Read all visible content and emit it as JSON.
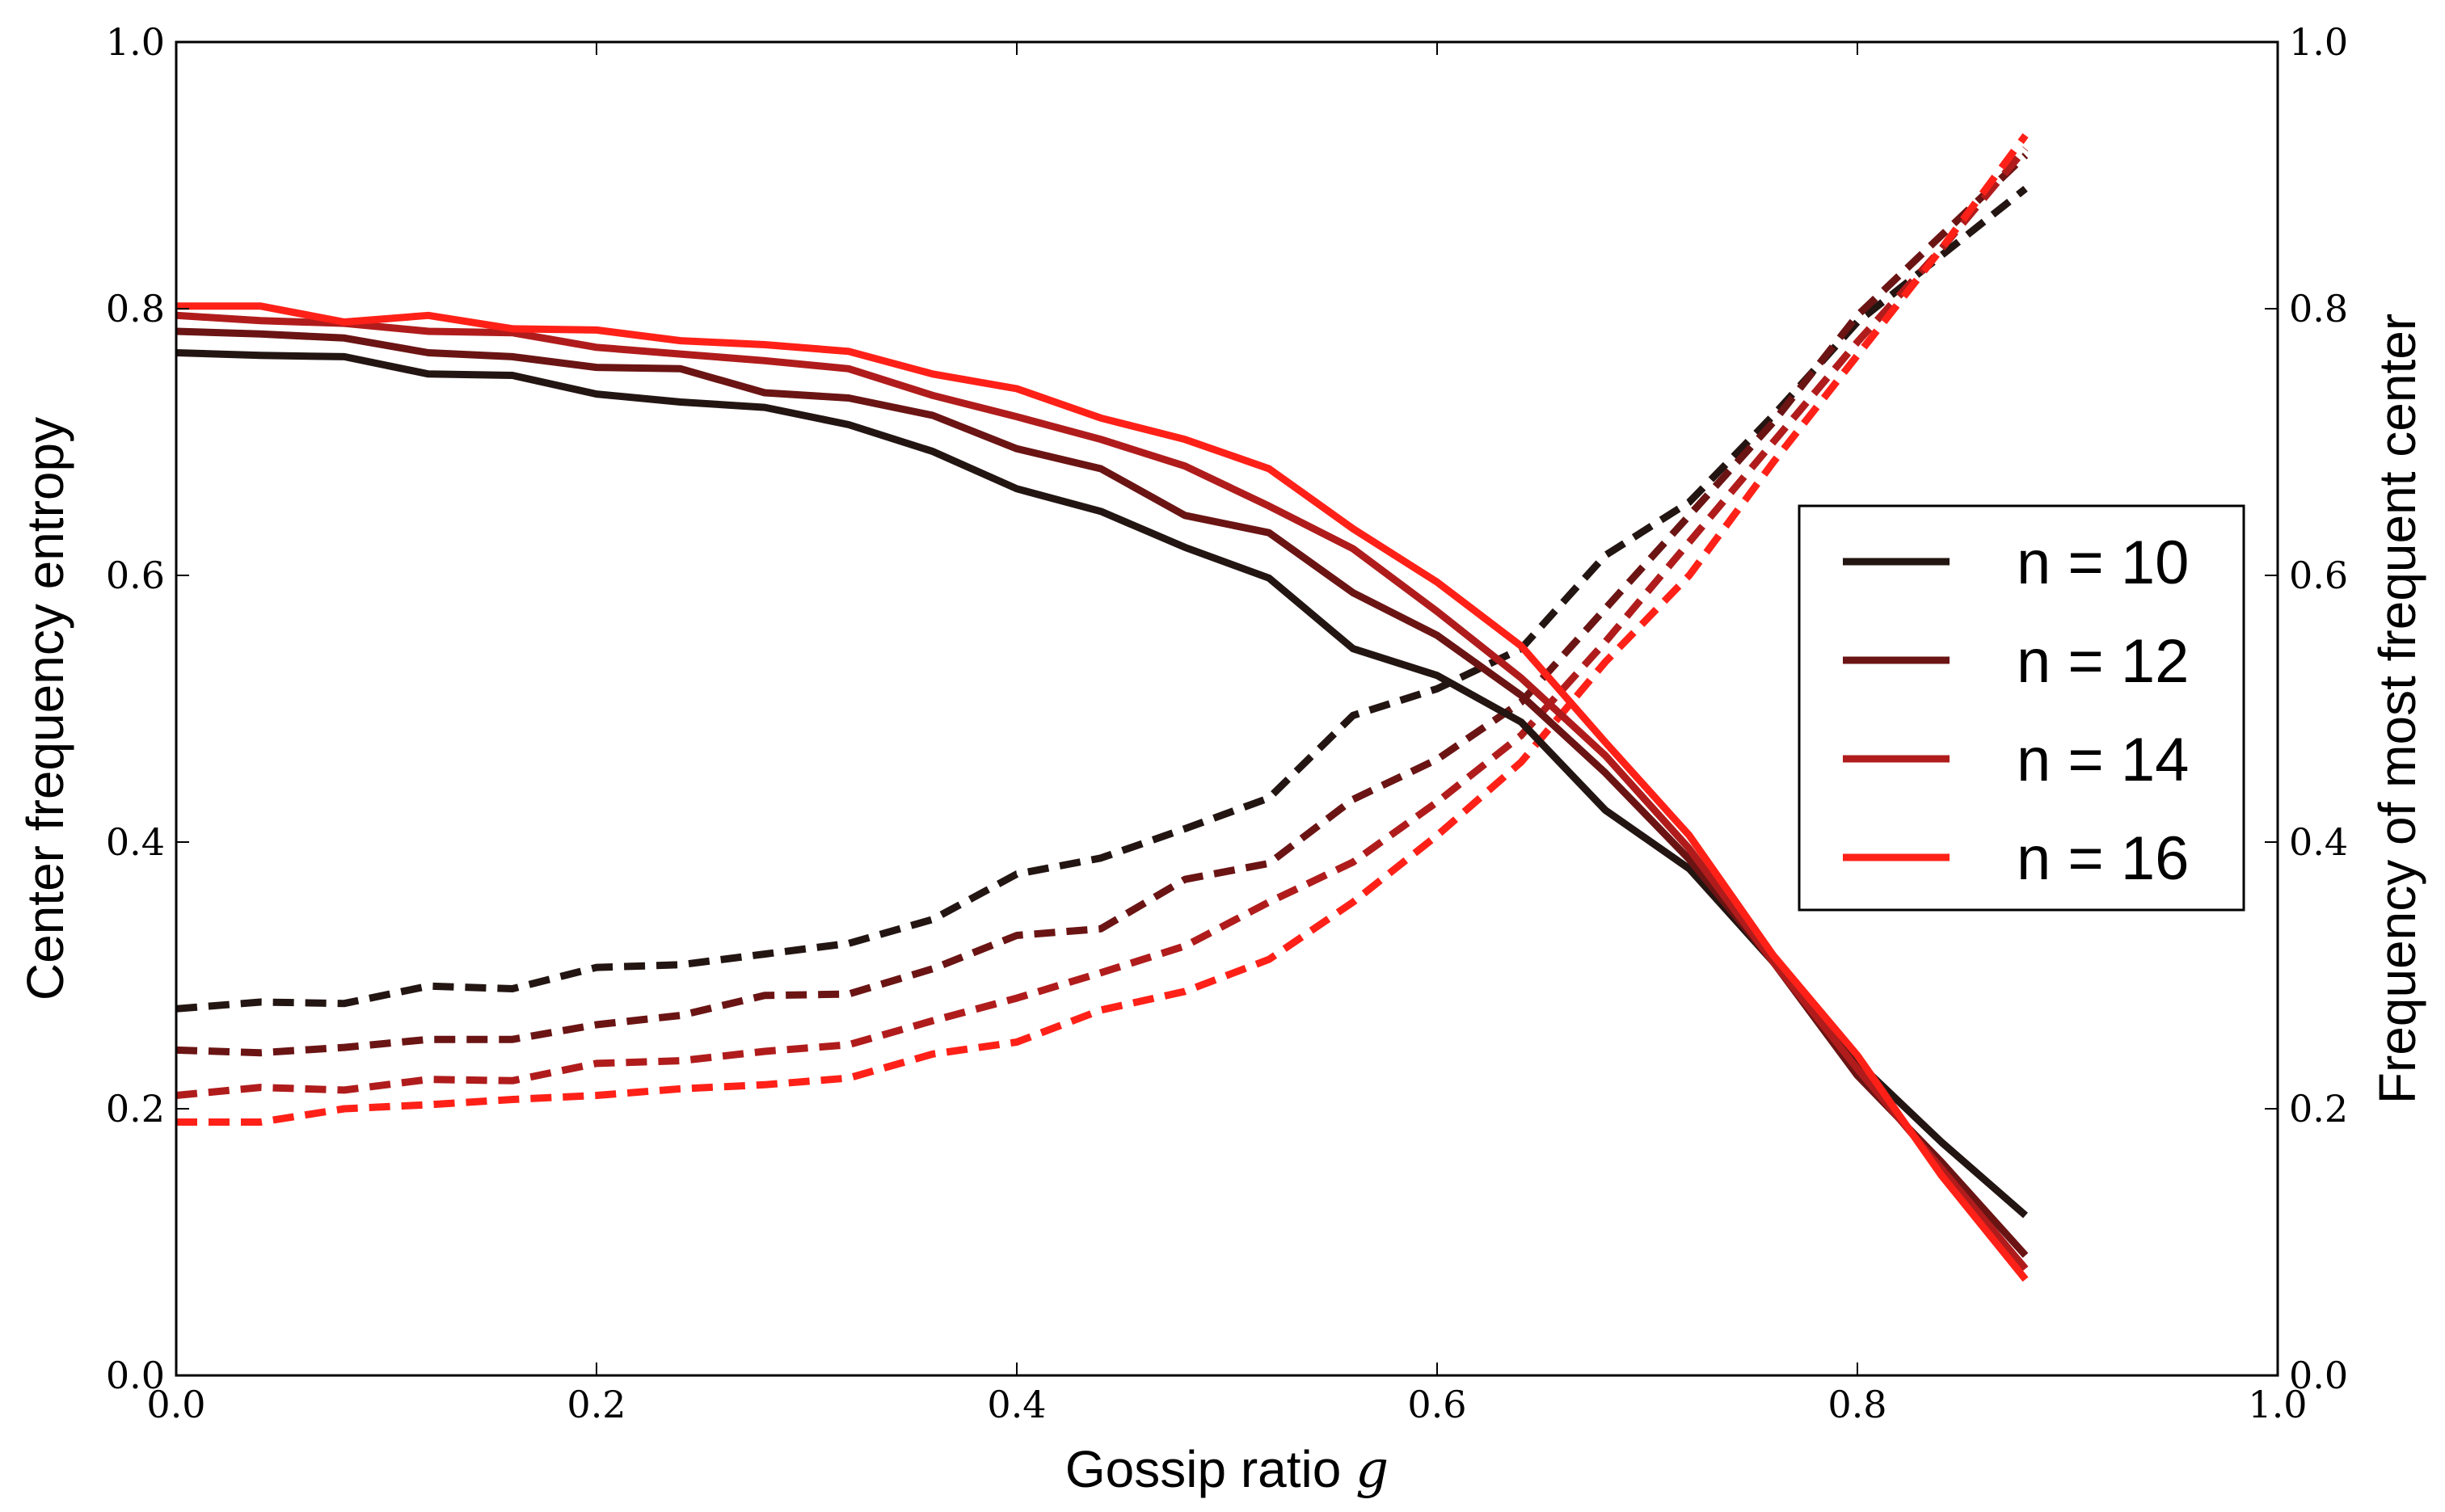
{
  "chart_data": {
    "type": "line",
    "title": "",
    "xlabel": "Gossip ratio",
    "xlabel_var": "g",
    "ylabel": "Center frequency entropy",
    "y2label": "Frequency of most frequent center",
    "xlim": [
      0.0,
      1.0
    ],
    "ylim": [
      0.0,
      1.0
    ],
    "y2lim": [
      0.0,
      1.0
    ],
    "x_ticks": [
      "0.0",
      "0.2",
      "0.4",
      "0.6",
      "0.8",
      "1.0"
    ],
    "y_ticks": [
      "0.0",
      "0.2",
      "0.4",
      "0.6",
      "0.8",
      "1.0"
    ],
    "y2_ticks": [
      "0.0",
      "0.2",
      "0.4",
      "0.6",
      "0.8",
      "1.0"
    ],
    "grid": false,
    "legend_position": "center-right",
    "x": [
      0.0,
      0.04,
      0.08,
      0.12,
      0.16,
      0.2,
      0.24,
      0.28,
      0.32,
      0.36,
      0.4,
      0.44,
      0.48,
      0.52,
      0.56,
      0.6,
      0.64,
      0.68,
      0.72,
      0.76,
      0.8,
      0.84,
      0.88
    ],
    "series": [
      {
        "name": "n = 10",
        "color": "#231512",
        "entropy": [
          0.767,
          0.765,
          0.764,
          0.751,
          0.75,
          0.736,
          0.73,
          0.726,
          0.713,
          0.693,
          0.665,
          0.648,
          0.621,
          0.598,
          0.545,
          0.525,
          0.49,
          0.424,
          0.38,
          0.31,
          0.235,
          0.175,
          0.12
        ],
        "frequency": [
          0.275,
          0.28,
          0.279,
          0.292,
          0.29,
          0.306,
          0.308,
          0.316,
          0.324,
          0.342,
          0.376,
          0.388,
          0.41,
          0.433,
          0.495,
          0.515,
          0.545,
          0.615,
          0.655,
          0.72,
          0.79,
          0.84,
          0.89
        ]
      },
      {
        "name": "n = 12",
        "color": "#6b1414",
        "entropy": [
          0.783,
          0.781,
          0.778,
          0.767,
          0.764,
          0.756,
          0.755,
          0.737,
          0.733,
          0.72,
          0.695,
          0.68,
          0.645,
          0.632,
          0.587,
          0.555,
          0.51,
          0.452,
          0.387,
          0.31,
          0.225,
          0.16,
          0.09
        ],
        "frequency": [
          0.244,
          0.242,
          0.246,
          0.252,
          0.252,
          0.263,
          0.27,
          0.285,
          0.286,
          0.305,
          0.33,
          0.335,
          0.372,
          0.384,
          0.432,
          0.462,
          0.505,
          0.575,
          0.645,
          0.715,
          0.795,
          0.855,
          0.915
        ]
      },
      {
        "name": "n = 14",
        "color": "#b01c1c",
        "entropy": [
          0.795,
          0.791,
          0.789,
          0.783,
          0.782,
          0.771,
          0.766,
          0.761,
          0.755,
          0.735,
          0.719,
          0.702,
          0.682,
          0.652,
          0.62,
          0.573,
          0.523,
          0.465,
          0.395,
          0.31,
          0.23,
          0.155,
          0.08
        ],
        "frequency": [
          0.21,
          0.216,
          0.214,
          0.222,
          0.221,
          0.234,
          0.236,
          0.243,
          0.248,
          0.266,
          0.283,
          0.302,
          0.322,
          0.355,
          0.385,
          0.43,
          0.48,
          0.55,
          0.625,
          0.7,
          0.775,
          0.845,
          0.92
        ]
      },
      {
        "name": "n = 16",
        "color": "#ff2118",
        "entropy": [
          0.802,
          0.802,
          0.79,
          0.795,
          0.785,
          0.784,
          0.776,
          0.773,
          0.768,
          0.751,
          0.74,
          0.718,
          0.702,
          0.68,
          0.635,
          0.595,
          0.547,
          0.475,
          0.405,
          0.315,
          0.24,
          0.15,
          0.072
        ],
        "frequency": [
          0.19,
          0.19,
          0.2,
          0.203,
          0.207,
          0.21,
          0.215,
          0.218,
          0.223,
          0.241,
          0.25,
          0.274,
          0.288,
          0.312,
          0.355,
          0.405,
          0.46,
          0.535,
          0.6,
          0.685,
          0.765,
          0.845,
          0.93
        ]
      }
    ]
  }
}
